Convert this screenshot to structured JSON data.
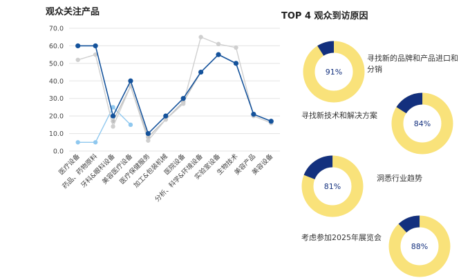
{
  "left_title": "观众关注产品",
  "right_title": "TOP 4 观众到访原因",
  "colors": {
    "dark_blue": "#14529b",
    "light_blue": "#8fc8ef",
    "gray_light": "#cfcfcf",
    "gray_mid": "#bdbdbd",
    "donut_yellow": "#f9e27a",
    "donut_navy": "#13307e",
    "grid": "#e3e3e3"
  },
  "chart_data": [
    {
      "type": "line",
      "title": "观众关注产品",
      "categories": [
        "医疗设备",
        "药品、药物原料",
        "牙科&眼科设备",
        "美容医疗设备",
        "医疗保健服务",
        "加工&包装机械",
        "医院设备",
        "分析、科学&环境设备",
        "实验室设备",
        "生物技术",
        "美容产品",
        "美容设备"
      ],
      "y_ticks": [
        "0.0",
        "10.0",
        "20.0",
        "30.0",
        "40.0",
        "50.0",
        "60.0",
        "70.0"
      ],
      "ylim": [
        0,
        70
      ],
      "series": [
        {
          "color": "dark_blue",
          "values": [
            60,
            60,
            20,
            40,
            10,
            20,
            30,
            45,
            55,
            50,
            21,
            17
          ]
        },
        {
          "color": "light_blue",
          "values": [
            5,
            5,
            25,
            15,
            null,
            null,
            null,
            null,
            null,
            null,
            null,
            null
          ]
        },
        {
          "color": "gray_light",
          "values": [
            52,
            55,
            14,
            37,
            6,
            18,
            27,
            65,
            61,
            59,
            20,
            16
          ]
        },
        {
          "color": "gray_mid",
          "values": [
            null,
            null,
            17,
            37,
            8,
            18,
            28,
            45,
            null,
            null,
            null,
            null
          ]
        }
      ]
    },
    {
      "type": "pie",
      "title": "TOP 4 观众到访原因",
      "items": [
        {
          "label": "寻找新的品牌和产品进口和分销",
          "value": 91,
          "display": "91%"
        },
        {
          "label": "寻找新技术和解决方案",
          "value": 84,
          "display": "84%"
        },
        {
          "label": "洞悉行业趋势",
          "value": 81,
          "display": "81%"
        },
        {
          "label": "考虑参加2025年展览会",
          "value": 88,
          "display": "88%"
        }
      ]
    }
  ]
}
